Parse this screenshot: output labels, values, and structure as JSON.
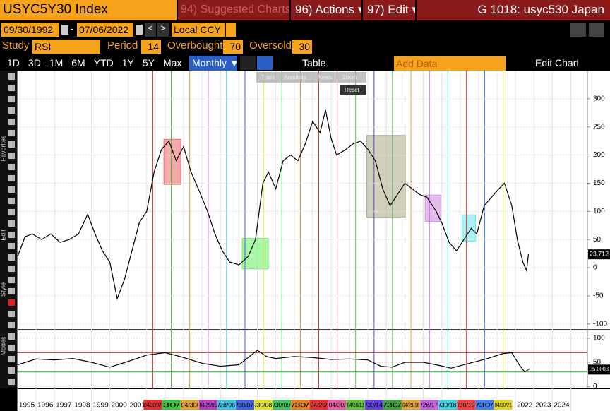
{
  "header": {
    "ticker": "USYC5Y30 Index",
    "suggested": "94) Suggested Charts",
    "actions": "96) Actions ▾",
    "edit": "97) Edit ▾",
    "page": "G 1018: usyc530 Japan"
  },
  "range": {
    "start": "09/30/1992",
    "sep": "-",
    "end": "07/06/2022",
    "currency": "Local CCY"
  },
  "study": {
    "label": "Study",
    "name": "RSI",
    "period_label": "Period",
    "period": 14,
    "overbought_label": "Overbought",
    "overbought": 70,
    "oversold_label": "Oversold",
    "oversold": 30
  },
  "toolbar": {
    "periods": [
      "1D",
      "3D",
      "1M",
      "6M",
      "YTD",
      "1Y",
      "5Y",
      "Max"
    ],
    "frequency": "Monthly ▼",
    "table": "Table",
    "add_data": "Add Data",
    "edit_chart": "Edit Chart"
  },
  "tools": [
    "Track",
    "Annotate",
    "News",
    "Zoom",
    "Reset"
  ],
  "sidebar": [
    "Favorites",
    "Edit",
    "Style",
    "Modes"
  ],
  "chart_data": [
    {
      "type": "line",
      "color": "#000000",
      "x": [
        1995.0,
        1995.4,
        1995.8,
        1996.3,
        1996.8,
        1997.3,
        1997.8,
        1998.3,
        1998.8,
        1999.2,
        1999.6,
        2000.0,
        2000.4,
        2000.8,
        2001.2,
        2001.6,
        2002.0,
        2002.4,
        2002.8,
        2003.2,
        2003.6,
        2004.0,
        2004.4,
        2004.8,
        2005.3,
        2005.7,
        2006.1,
        2006.5,
        2007.0,
        2007.5,
        2007.9,
        2008.3,
        2008.6,
        2009.0,
        2009.4,
        2009.8,
        2010.2,
        2010.6,
        2011.0,
        2011.4,
        2011.7,
        2012.0,
        2012.3,
        2012.8,
        2013.2,
        2013.6,
        2014.0,
        2014.4,
        2014.8,
        2015.2,
        2015.6,
        2016.0,
        2016.4,
        2016.8,
        2017.2,
        2017.7,
        2018.0,
        2018.4,
        2018.8,
        2019.2,
        2019.6,
        2019.9,
        2020.3,
        2020.7,
        2021.1,
        2021.4,
        2021.8,
        2022.1,
        2022.4,
        2022.6,
        2022.7
      ],
      "values": [
        20,
        55,
        60,
        50,
        60,
        45,
        50,
        60,
        95,
        60,
        30,
        10,
        -55,
        -20,
        30,
        80,
        100,
        170,
        210,
        225,
        190,
        215,
        170,
        140,
        100,
        60,
        30,
        10,
        5,
        20,
        50,
        150,
        170,
        140,
        190,
        200,
        190,
        220,
        260,
        240,
        280,
        230,
        200,
        210,
        220,
        225,
        210,
        190,
        140,
        110,
        130,
        150,
        140,
        130,
        125,
        100,
        80,
        45,
        30,
        50,
        70,
        60,
        110,
        125,
        140,
        150,
        110,
        50,
        10,
        -5,
        23.712
      ],
      "last_label": "23.712",
      "xlim": [
        1995,
        2025.9
      ],
      "ylim": [
        -109,
        350
      ],
      "yticks": [
        -100,
        -50,
        0,
        50,
        100,
        150,
        200,
        250,
        300
      ],
      "xticks": [
        {
          "value": 1995.5,
          "label": "1995"
        },
        {
          "value": 1996.5,
          "label": "1996"
        },
        {
          "value": 1997.5,
          "label": "1997"
        },
        {
          "value": 1998.5,
          "label": "1998"
        },
        {
          "value": 1999.5,
          "label": "1999"
        },
        {
          "value": 2000.5,
          "label": "2000"
        },
        {
          "value": 2001.5,
          "label": "2001"
        },
        {
          "value": 2022.5,
          "label": "2022"
        },
        {
          "value": 2023.5,
          "label": "2023"
        },
        {
          "value": 2024.5,
          "label": "2024"
        }
      ],
      "events": [
        {
          "x": 2002.33,
          "label": "04/30/02",
          "color": "#e03030"
        },
        {
          "x": 2003.33,
          "label": "30/",
          "color": "#40c040"
        },
        {
          "x": 2004.33,
          "label": "04/30/",
          "color": "#e0a030"
        },
        {
          "x": 2005.33,
          "label": "04/29/05",
          "color": "#b040c0"
        },
        {
          "x": 2006.33,
          "label": "/28/06",
          "color": "#40c0e0"
        },
        {
          "x": 2007.33,
          "label": "/30/07",
          "color": "#4060e0"
        },
        {
          "x": 2008.33,
          "label": "/30/08",
          "color": "#e0e030"
        },
        {
          "x": 2009.33,
          "label": "/30/09",
          "color": "#40c060"
        },
        {
          "x": 2010.33,
          "label": "/30/",
          "color": "#e08020"
        },
        {
          "x": 2011.33,
          "label": "04/29/",
          "color": "#e03030"
        },
        {
          "x": 2012.33,
          "label": "04/30/",
          "color": "#e060a0"
        },
        {
          "x": 2013.33,
          "label": "04/30/13",
          "color": "#60c040"
        },
        {
          "x": 2014.33,
          "label": "/30/14",
          "color": "#6040e0"
        },
        {
          "x": 2015.33,
          "label": "/30/",
          "color": "#40a040"
        },
        {
          "x": 2016.33,
          "label": "04/29/16",
          "color": "#e0a040"
        },
        {
          "x": 2017.33,
          "label": "/28/17",
          "color": "#c060e0"
        },
        {
          "x": 2018.33,
          "label": "/30/18",
          "color": "#40d0e0"
        },
        {
          "x": 2019.33,
          "label": "/30/19",
          "color": "#f04040"
        },
        {
          "x": 2020.33,
          "label": "/30/",
          "color": "#4080f0"
        },
        {
          "x": 2021.33,
          "label": "04/30/21",
          "color": "#e0d030"
        }
      ],
      "highlights": [
        {
          "x": [
            2002.93,
            2003.85
          ],
          "y": [
            148,
            228
          ],
          "color": "#f07070"
        },
        {
          "x": [
            2007.18,
            2008.6
          ],
          "y": [
            -2,
            52
          ],
          "color": "#70f070"
        },
        {
          "x": [
            2013.93,
            2016.03
          ],
          "y": [
            90,
            235
          ],
          "color": "#b0b090"
        },
        {
          "x": [
            2017.1,
            2017.95
          ],
          "y": [
            82,
            129
          ],
          "color": "#d090e0"
        },
        {
          "x": [
            2019.1,
            2019.83
          ],
          "y": [
            47,
            94
          ],
          "color": "#70e8f0"
        }
      ]
    },
    {
      "type": "line",
      "color": "#000000",
      "x": [
        1995,
        1996,
        1997,
        1998,
        1999,
        2000,
        2001,
        2002,
        2003,
        2004,
        2005,
        2006,
        2007,
        2008,
        2008.5,
        2009,
        2010,
        2011,
        2012,
        2013,
        2014,
        2014.7,
        2015.3,
        2016,
        2017,
        2017.7,
        2018.5,
        2019.5,
        2020.5,
        2021.3,
        2021.8,
        2022.2,
        2022.5,
        2022.7
      ],
      "values": [
        45,
        57,
        55,
        58,
        50,
        40,
        52,
        65,
        70,
        60,
        48,
        42,
        45,
        75,
        62,
        58,
        62,
        60,
        56,
        57,
        55,
        42,
        40,
        50,
        50,
        45,
        38,
        48,
        58,
        68,
        70,
        45,
        30,
        35.0003
      ],
      "last_label": "35.0003",
      "xlim": [
        1995,
        2025.9
      ],
      "ylim": [
        -4,
        113
      ],
      "yticks": [
        0,
        50,
        100
      ]
    }
  ]
}
